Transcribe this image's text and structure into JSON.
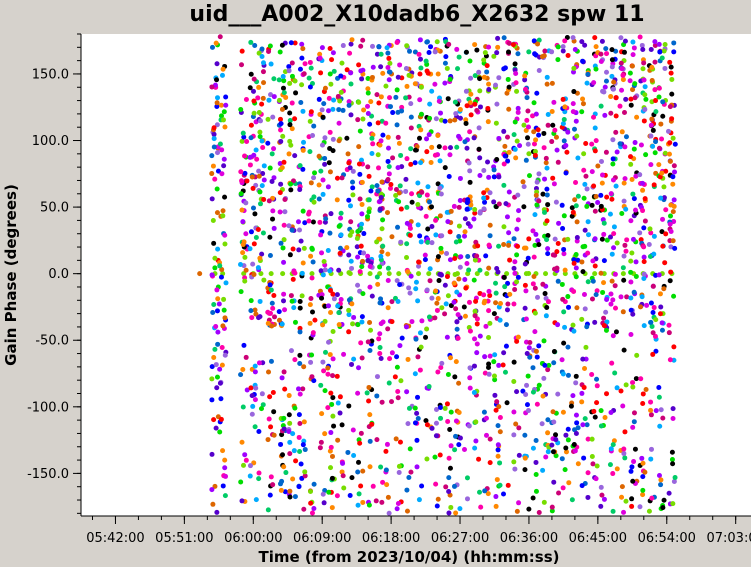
{
  "chart_data": {
    "type": "scatter",
    "title": "uid___A002_X10dadb6_X2632 spw 11",
    "xlabel": "Time (from 2023/10/04) (hh:mm:ss)",
    "ylabel": "Gain Phase (degrees)",
    "xlim": [
      "05:37:30",
      "07:05:00"
    ],
    "ylim": [
      -182,
      180
    ],
    "x_ticks": [
      "05:42:00",
      "05:51:00",
      "06:00:00",
      "06:09:00",
      "06:18:00",
      "06:27:00",
      "06:36:00",
      "06:45:00",
      "06:54:00",
      "07:03:00"
    ],
    "y_ticks": [
      -150.0,
      -100.0,
      -50.0,
      0.0,
      50.0,
      100.0,
      150.0
    ],
    "y_tick_labels": [
      "-150.0",
      "-100.0",
      "-50.0",
      "0.0",
      "50.0",
      "100.0",
      "150.0"
    ],
    "scan_times": [
      "05:55:00",
      "05:56:00",
      "05:58:45",
      "06:00:00",
      "06:01:00",
      "06:02:20",
      "06:03:50",
      "06:05:05",
      "06:06:20",
      "06:07:40",
      "06:09:00",
      "06:10:10",
      "06:11:25",
      "06:12:40",
      "06:14:00",
      "06:15:15",
      "06:16:30",
      "06:17:45",
      "06:19:00",
      "06:20:20",
      "06:21:35",
      "06:22:55",
      "06:24:10",
      "06:25:25",
      "06:26:40",
      "06:28:00",
      "06:29:15",
      "06:30:30",
      "06:31:50",
      "06:33:05",
      "06:34:20",
      "06:35:40",
      "06:36:55",
      "06:38:10",
      "06:39:25",
      "06:40:45",
      "06:42:00",
      "06:43:20",
      "06:44:35",
      "06:45:50",
      "06:47:05",
      "06:48:20",
      "06:49:40",
      "06:50:55",
      "06:52:10",
      "06:53:25",
      "06:54:40"
    ],
    "outlier_points": [
      {
        "x": "05:53:00",
        "y": 0
      }
    ],
    "reference_antenna_phase": 0,
    "series_colors": [
      "#000000",
      "#0000ff",
      "#ff0000",
      "#00dd00",
      "#a000ff",
      "#ff00aa",
      "#00aaff",
      "#ff8800",
      "#9966dd",
      "#cc0077",
      "#0066cc",
      "#77dd00",
      "#5500cc",
      "#00cc66",
      "#dd6600",
      "#dd00dd"
    ],
    "reference_color": "#77dd00",
    "grid": false,
    "legend": "none"
  }
}
